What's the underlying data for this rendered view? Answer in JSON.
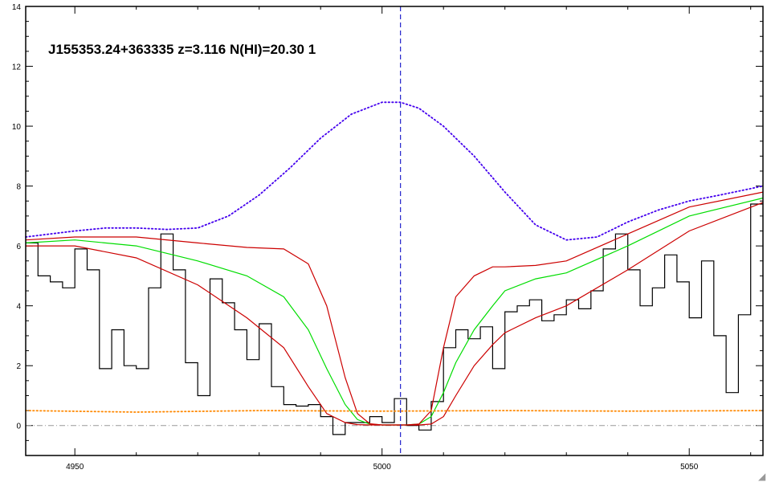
{
  "chart_data": {
    "type": "line",
    "title": "J155353.24+363335 z=3.116 N(HI)=20.30 1",
    "xlim": [
      4942,
      5062
    ],
    "ylim": [
      -1,
      14
    ],
    "x_ticks": [
      4950,
      5000,
      5050
    ],
    "y_ticks": [
      0,
      2,
      4,
      6,
      8,
      10,
      12,
      14
    ],
    "grid": false,
    "reference_line_x": 5003,
    "zero_line_y": 0,
    "series": [
      {
        "style": "steps",
        "color": "#000000",
        "x": [
          4943,
          4945,
          4947,
          4949,
          4951,
          4953,
          4955,
          4957,
          4959,
          4961,
          4963,
          4965,
          4967,
          4969,
          4971,
          4973,
          4975,
          4977,
          4979,
          4981,
          4983,
          4985,
          4987,
          4989,
          4991,
          4993,
          4995,
          4997,
          4999,
          5001,
          5003,
          5005,
          5007,
          5009,
          5011,
          5013,
          5015,
          5017,
          5019,
          5021,
          5023,
          5025,
          5027,
          5029,
          5031,
          5033,
          5035,
          5037,
          5039,
          5041,
          5043,
          5045,
          5047,
          5049,
          5051,
          5053,
          5055,
          5057,
          5059,
          5061
        ],
        "y": [
          6.1,
          5.0,
          4.8,
          4.6,
          5.9,
          5.2,
          1.9,
          3.2,
          2.0,
          1.9,
          4.6,
          6.4,
          5.2,
          2.1,
          1.0,
          4.9,
          4.1,
          3.2,
          2.2,
          3.4,
          1.3,
          0.7,
          0.65,
          0.7,
          0.3,
          -0.3,
          0.1,
          0.1,
          0.3,
          0.1,
          0.9,
          0.0,
          -0.15,
          0.8,
          2.6,
          3.2,
          2.9,
          3.3,
          1.9,
          3.8,
          4.0,
          4.2,
          3.5,
          3.7,
          4.2,
          3.9,
          4.5,
          5.9,
          6.4,
          5.2,
          4.0,
          4.6,
          5.7,
          4.8,
          3.6,
          5.5,
          3.0,
          1.1,
          3.7,
          7.4
        ]
      },
      {
        "style": "line",
        "color": "#00dd00",
        "x": [
          4942,
          4950,
          4960,
          4970,
          4978,
          4984,
          4988,
          4991,
          4994,
          4996,
          4998,
          5000,
          5002,
          5004,
          5006,
          5008,
          5010,
          5012,
          5015,
          5018,
          5020,
          5025,
          5030,
          5040,
          5050,
          5062
        ],
        "y": [
          6.1,
          6.2,
          6.0,
          5.5,
          5.0,
          4.3,
          3.2,
          1.9,
          0.7,
          0.2,
          0.05,
          0.02,
          0.02,
          0.02,
          0.05,
          0.3,
          1.1,
          2.1,
          3.2,
          4.0,
          4.5,
          4.9,
          5.1,
          6.0,
          7.0,
          7.6
        ]
      },
      {
        "style": "line",
        "color": "#cc0000",
        "x": [
          4942,
          4950,
          4960,
          4970,
          4978,
          4984,
          4988,
          4991,
          4994,
          4996,
          4998,
          5000,
          5002,
          5004,
          5006,
          5008,
          5010,
          5012,
          5015,
          5018,
          5020,
          5025,
          5030,
          5040,
          5050,
          5062
        ],
        "y": [
          6.2,
          6.3,
          6.3,
          6.1,
          5.95,
          5.9,
          5.4,
          4.0,
          1.6,
          0.4,
          0.06,
          0.02,
          0.02,
          0.02,
          0.05,
          0.5,
          2.6,
          4.3,
          5.0,
          5.3,
          5.3,
          5.35,
          5.5,
          6.4,
          7.3,
          7.8
        ]
      },
      {
        "style": "line",
        "color": "#cc0000",
        "x": [
          4942,
          4950,
          4960,
          4970,
          4978,
          4984,
          4988,
          4991,
          4994,
          4996,
          4998,
          5000,
          5002,
          5004,
          5006,
          5008,
          5010,
          5012,
          5015,
          5018,
          5020,
          5025,
          5030,
          5040,
          5050,
          5062
        ],
        "y": [
          6.0,
          6.0,
          5.6,
          4.7,
          3.6,
          2.6,
          1.3,
          0.4,
          0.1,
          0.03,
          0.02,
          0.02,
          0.02,
          0.02,
          0.02,
          0.05,
          0.3,
          1.0,
          2.0,
          2.7,
          3.1,
          3.6,
          4.0,
          5.2,
          6.5,
          7.45
        ]
      },
      {
        "style": "dotted",
        "color": "#4400ee",
        "x": [
          4942,
          4950,
          4955,
          4960,
          4965,
          4970,
          4975,
          4980,
          4985,
          4990,
          4995,
          5000,
          5003,
          5006,
          5010,
          5015,
          5020,
          5025,
          5030,
          5035,
          5040,
          5045,
          5050,
          5055,
          5062
        ],
        "y": [
          6.3,
          6.5,
          6.6,
          6.6,
          6.55,
          6.6,
          7.0,
          7.7,
          8.6,
          9.6,
          10.4,
          10.8,
          10.8,
          10.6,
          10.0,
          9.0,
          7.8,
          6.7,
          6.2,
          6.3,
          6.8,
          7.2,
          7.5,
          7.7,
          8.0
        ]
      },
      {
        "style": "dotted",
        "color": "#ff8800",
        "x": [
          4942,
          4960,
          4980,
          5000,
          5020,
          5040,
          5062
        ],
        "y": [
          0.5,
          0.45,
          0.5,
          0.48,
          0.5,
          0.48,
          0.5
        ]
      }
    ]
  }
}
